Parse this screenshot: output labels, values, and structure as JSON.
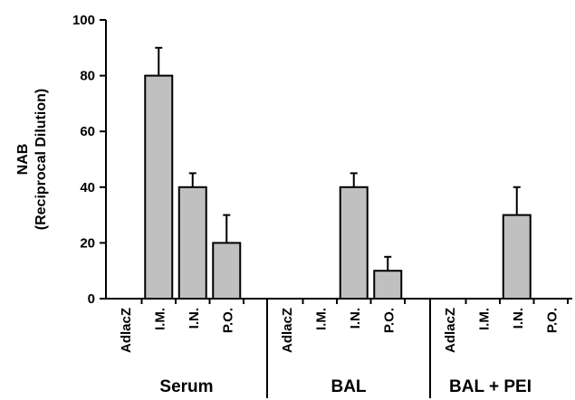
{
  "chart_data": {
    "type": "bar",
    "title": "",
    "ylabel_lines": [
      "NAB",
      "(Reciprocal Dilution)"
    ],
    "ylim": [
      0,
      100
    ],
    "yticks": [
      0,
      20,
      40,
      60,
      80,
      100
    ],
    "grid": false,
    "legend": "none",
    "bar_color": "#c0c0c0",
    "groups": [
      {
        "label": "Serum",
        "categories": [
          "AdlacZ",
          "I.M.",
          "I.N.",
          "P.O."
        ],
        "values": [
          0,
          80,
          40,
          20
        ],
        "errors": [
          0,
          10,
          5,
          10
        ]
      },
      {
        "label": "BAL",
        "categories": [
          "AdlacZ",
          "I.M.",
          "I.N.",
          "P.O."
        ],
        "values": [
          0,
          0,
          40,
          10
        ],
        "errors": [
          0,
          0,
          5,
          5
        ]
      },
      {
        "label": "BAL + PEI",
        "categories": [
          "AdlacZ",
          "I.M.",
          "I.N.",
          "P.O."
        ],
        "values": [
          0,
          0,
          30,
          0
        ],
        "errors": [
          0,
          0,
          10,
          0
        ]
      }
    ]
  }
}
